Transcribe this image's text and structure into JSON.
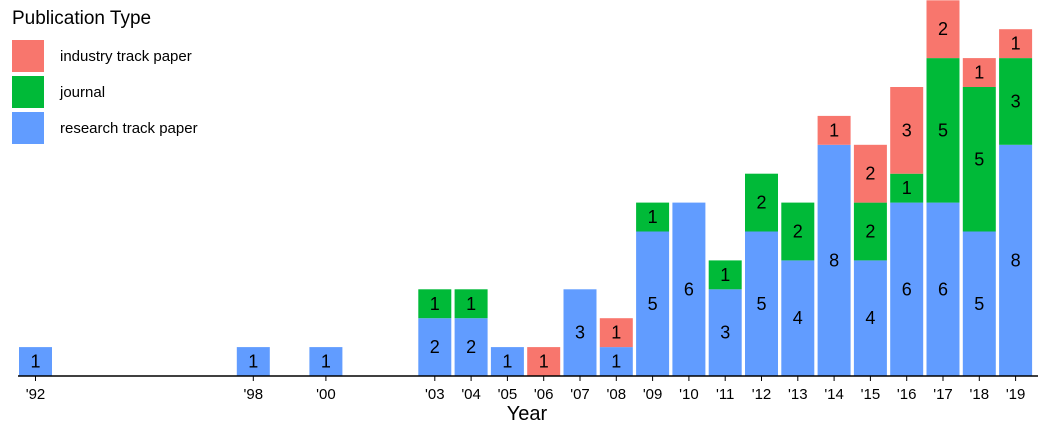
{
  "chart_data": {
    "type": "bar",
    "stacked": true,
    "legend": {
      "title": "Publication Type",
      "placement": "top-left",
      "entries": [
        {
          "label": "industry track paper",
          "color": "#F8766D"
        },
        {
          "label": "journal",
          "color": "#00BA38"
        },
        {
          "label": "research track paper",
          "color": "#619CFF"
        }
      ]
    },
    "xlabel": "Year",
    "ylabel": "",
    "ylim": [
      0,
      13
    ],
    "grid": false,
    "x_range": [
      1992,
      2019
    ],
    "categories": [
      "'92",
      "'98",
      "'00",
      "'03",
      "'04",
      "'05",
      "'06",
      "'07",
      "'08",
      "'09",
      "'10",
      "'11",
      "'12",
      "'13",
      "'14",
      "'15",
      "'16",
      "'17",
      "'18",
      "'19"
    ],
    "years": [
      1992,
      1998,
      2000,
      2003,
      2004,
      2005,
      2006,
      2007,
      2008,
      2009,
      2010,
      2011,
      2012,
      2013,
      2014,
      2015,
      2016,
      2017,
      2018,
      2019
    ],
    "series": [
      {
        "name": "research track paper",
        "color": "#619CFF",
        "values": [
          1,
          1,
          1,
          2,
          2,
          1,
          0,
          3,
          1,
          5,
          6,
          3,
          5,
          4,
          8,
          4,
          6,
          6,
          5,
          8
        ]
      },
      {
        "name": "journal",
        "color": "#00BA38",
        "values": [
          0,
          0,
          0,
          1,
          1,
          0,
          0,
          0,
          0,
          1,
          0,
          1,
          2,
          2,
          0,
          2,
          1,
          5,
          5,
          3
        ]
      },
      {
        "name": "industry track paper",
        "color": "#F8766D",
        "values": [
          0,
          0,
          0,
          0,
          0,
          0,
          1,
          0,
          1,
          0,
          0,
          0,
          0,
          0,
          1,
          2,
          3,
          2,
          1,
          1
        ]
      }
    ]
  }
}
